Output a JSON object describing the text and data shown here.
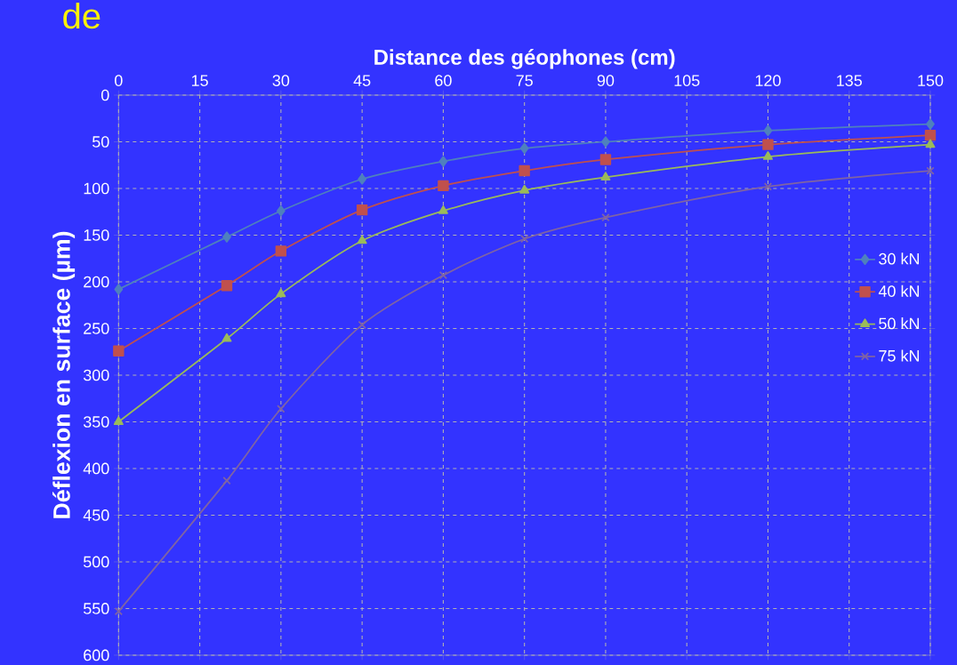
{
  "chart_data": {
    "type": "line",
    "xlabel": "Distance des géophones (cm)",
    "ylabel": "Déflexion en surface (µm)",
    "annotations": [
      "de"
    ],
    "x": [
      0,
      20,
      30,
      45,
      60,
      75,
      90,
      120,
      150
    ],
    "series": [
      {
        "name": "30 kN",
        "color": "#4f81bd",
        "marker": "diamond",
        "values": [
          208,
          152,
          124,
          90,
          71,
          57,
          50,
          38,
          31
        ]
      },
      {
        "name": "40 kN",
        "color": "#c0504d",
        "marker": "square",
        "values": [
          274,
          204,
          167,
          123,
          97,
          81,
          69,
          53,
          43
        ]
      },
      {
        "name": "50 kN",
        "color": "#9bbb59",
        "marker": "triangle",
        "values": [
          350,
          261,
          213,
          156,
          124,
          102,
          88,
          66,
          53
        ]
      },
      {
        "name": "75 kN",
        "color": "#8064a2",
        "marker": "cross",
        "values": [
          553,
          413,
          336,
          246,
          193,
          154,
          131,
          98,
          81
        ]
      }
    ],
    "xlim": [
      0,
      150
    ],
    "xticks": [
      0,
      15,
      30,
      45,
      60,
      75,
      90,
      105,
      120,
      135,
      150
    ],
    "ylim": [
      600,
      0
    ],
    "yticks": [
      0,
      50,
      100,
      150,
      200,
      250,
      300,
      350,
      400,
      450,
      500,
      550,
      600
    ],
    "grid": true,
    "legend": "right",
    "line_style": "solid"
  }
}
